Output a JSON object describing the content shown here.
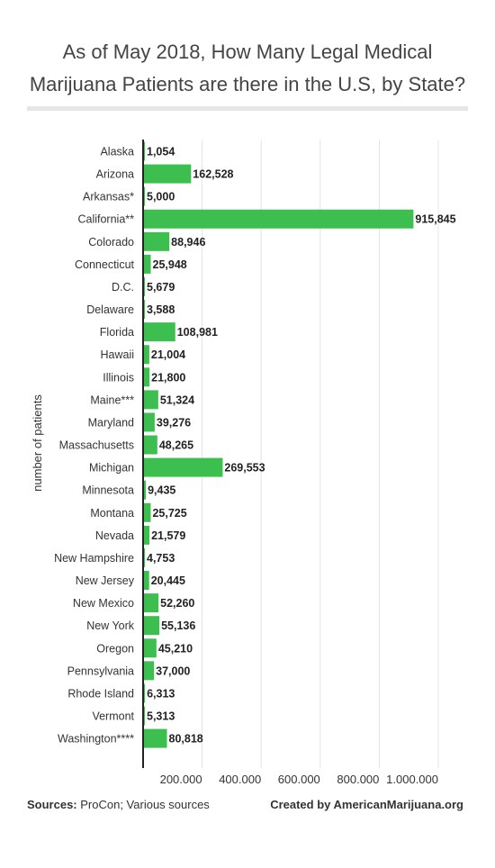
{
  "header": {
    "title_line1": "As of May 2018, How Many Legal Medical",
    "title_line2": "Marijuana Patients are there in the U.S, by State?"
  },
  "footer": {
    "sources_label": "Sources:",
    "sources_text": " ProCon; Various sources",
    "credit": "Created by AmericanMarijuana.org"
  },
  "colors": {
    "bar": "#3dbf50",
    "grid": "#e4e4e4",
    "axis": "#222222"
  },
  "chart_data": {
    "type": "bar",
    "orientation": "horizontal",
    "categories": [
      "Alaska",
      "Arizona",
      "Arkansas*",
      "California**",
      "Colorado",
      "Connecticut",
      "D.C.",
      "Delaware",
      "Florida",
      "Hawaii",
      "Illinois",
      "Maine***",
      "Maryland",
      "Massachusetts",
      "Michigan",
      "Minnesota",
      "Montana",
      "Nevada",
      "New Hampshire",
      "New Jersey",
      "New Mexico",
      "New York",
      "Oregon",
      "Pennsylvania",
      "Rhode Island",
      "Vermont",
      "Washington****"
    ],
    "values": [
      1054,
      162528,
      5000,
      915845,
      88946,
      25948,
      5679,
      3588,
      108981,
      21004,
      21800,
      51324,
      39276,
      48265,
      269553,
      9435,
      25725,
      21579,
      4753,
      20445,
      52260,
      55136,
      45210,
      37000,
      6313,
      5313,
      80818
    ],
    "value_labels": [
      "1,054",
      "162,528",
      "5,000",
      "915,845",
      "88,946",
      "25,948",
      "5,679",
      "3,588",
      "108,981",
      "21,004",
      "21,800",
      "51,324",
      "39,276",
      "48,265",
      "269,553",
      "9,435",
      "25,725",
      "21,579",
      "4,753",
      "20,445",
      "52,260",
      "55,136",
      "45,210",
      "37,000",
      "6,313",
      "5,313",
      "80,818"
    ],
    "ylabel": "number of patients",
    "xlabel": "",
    "xlim": [
      0,
      1000000
    ],
    "xticks": [
      200000,
      400000,
      600000,
      800000,
      1000000
    ],
    "xtick_labels": [
      "200,000",
      "400,000",
      "600,000",
      "800,000",
      "1,000,000"
    ],
    "grid": true
  }
}
